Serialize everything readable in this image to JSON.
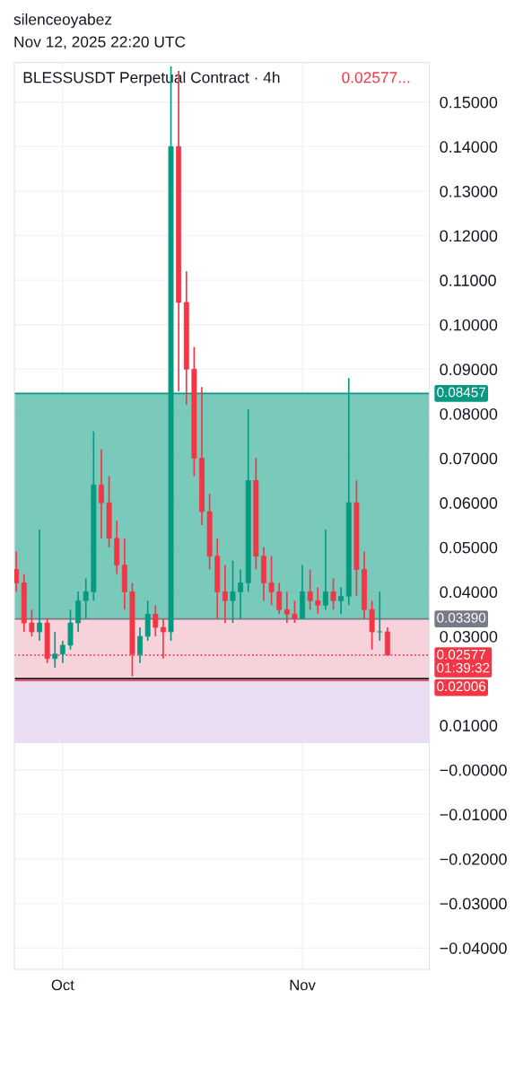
{
  "chart_data": {
    "type": "candlestick",
    "title": "BLESSUSDT Perpetual Contract · 4h",
    "annotations": [
      "silenceoyabez",
      "Nov 12, 2025 22:20 UTC",
      "0.02577..."
    ],
    "x": [
      "2025-09-25",
      "2025-09-26",
      "2025-09-27",
      "2025-09-28",
      "2025-09-29",
      "2025-09-30",
      "2025-10-01",
      "2025-10-02",
      "2025-10-03",
      "2025-10-04",
      "2025-10-05",
      "2025-10-06",
      "2025-10-07",
      "2025-10-08",
      "2025-10-09",
      "2025-10-10",
      "2025-10-11",
      "2025-10-12",
      "2025-10-13",
      "2025-10-14",
      "2025-10-15",
      "2025-10-16",
      "2025-10-17",
      "2025-10-18",
      "2025-10-19",
      "2025-10-20",
      "2025-10-21",
      "2025-10-22",
      "2025-10-23",
      "2025-10-24",
      "2025-10-25",
      "2025-10-26",
      "2025-10-27",
      "2025-10-28",
      "2025-10-29",
      "2025-10-30",
      "2025-10-31",
      "2025-11-01",
      "2025-11-02",
      "2025-11-03",
      "2025-11-04",
      "2025-11-05",
      "2025-11-06",
      "2025-11-07",
      "2025-11-08",
      "2025-11-09",
      "2025-11-10",
      "2025-11-11",
      "2025-11-12"
    ],
    "ohlc": [
      [
        0.045,
        0.049,
        0.04,
        0.042
      ],
      [
        0.042,
        0.044,
        0.031,
        0.033
      ],
      [
        0.033,
        0.036,
        0.03,
        0.031
      ],
      [
        0.031,
        0.054,
        0.029,
        0.033
      ],
      [
        0.033,
        0.034,
        0.024,
        0.025
      ],
      [
        0.025,
        0.031,
        0.023,
        0.026
      ],
      [
        0.026,
        0.029,
        0.024,
        0.028
      ],
      [
        0.028,
        0.036,
        0.027,
        0.033
      ],
      [
        0.033,
        0.04,
        0.031,
        0.038
      ],
      [
        0.038,
        0.043,
        0.034,
        0.04
      ],
      [
        0.04,
        0.076,
        0.038,
        0.064
      ],
      [
        0.064,
        0.072,
        0.052,
        0.06
      ],
      [
        0.06,
        0.066,
        0.05,
        0.052
      ],
      [
        0.052,
        0.056,
        0.044,
        0.046
      ],
      [
        0.046,
        0.052,
        0.036,
        0.04
      ],
      [
        0.04,
        0.042,
        0.021,
        0.026
      ],
      [
        0.026,
        0.032,
        0.024,
        0.03
      ],
      [
        0.03,
        0.038,
        0.029,
        0.035
      ],
      [
        0.035,
        0.037,
        0.03,
        0.032
      ],
      [
        0.032,
        0.034,
        0.025,
        0.031
      ],
      [
        0.031,
        0.158,
        0.029,
        0.14
      ],
      [
        0.14,
        0.157,
        0.085,
        0.105
      ],
      [
        0.105,
        0.112,
        0.082,
        0.09
      ],
      [
        0.09,
        0.095,
        0.066,
        0.07
      ],
      [
        0.07,
        0.086,
        0.055,
        0.058
      ],
      [
        0.058,
        0.062,
        0.045,
        0.048
      ],
      [
        0.048,
        0.052,
        0.034,
        0.04
      ],
      [
        0.04,
        0.046,
        0.033,
        0.038
      ],
      [
        0.038,
        0.047,
        0.033,
        0.04
      ],
      [
        0.04,
        0.045,
        0.034,
        0.042
      ],
      [
        0.042,
        0.081,
        0.04,
        0.065
      ],
      [
        0.065,
        0.07,
        0.045,
        0.048
      ],
      [
        0.048,
        0.05,
        0.038,
        0.042
      ],
      [
        0.042,
        0.048,
        0.037,
        0.04
      ],
      [
        0.04,
        0.042,
        0.035,
        0.036
      ],
      [
        0.036,
        0.04,
        0.033,
        0.035
      ],
      [
        0.035,
        0.038,
        0.033,
        0.034
      ],
      [
        0.034,
        0.046,
        0.034,
        0.04
      ],
      [
        0.04,
        0.045,
        0.036,
        0.038
      ],
      [
        0.038,
        0.041,
        0.035,
        0.037
      ],
      [
        0.037,
        0.054,
        0.036,
        0.04
      ],
      [
        0.04,
        0.043,
        0.036,
        0.038
      ],
      [
        0.038,
        0.041,
        0.035,
        0.039
      ],
      [
        0.039,
        0.088,
        0.037,
        0.06
      ],
      [
        0.06,
        0.065,
        0.039,
        0.045
      ],
      [
        0.045,
        0.049,
        0.034,
        0.036
      ],
      [
        0.036,
        0.038,
        0.027,
        0.031
      ],
      [
        0.031,
        0.04,
        0.029,
        0.031
      ],
      [
        0.031,
        0.032,
        0.0257,
        0.02577
      ]
    ],
    "xlim": [
      "2025-09-24T18:00",
      "2025-11-17T10:00"
    ],
    "xticks": [
      {
        "value": "2025-10-01",
        "label": "Oct"
      },
      {
        "value": "2025-11-01",
        "label": "Nov"
      }
    ],
    "ylim": [
      -0.0448,
      0.1589
    ],
    "yticks": [
      {
        "value": -0.04,
        "label": "−0.04000"
      },
      {
        "value": -0.03,
        "label": "−0.03000"
      },
      {
        "value": -0.02,
        "label": "−0.02000"
      },
      {
        "value": -0.01,
        "label": "−0.01000"
      },
      {
        "value": 0,
        "label": "−0.00000"
      },
      {
        "value": 0.01,
        "label": "0.01000"
      },
      {
        "value": 0.02,
        "label": null
      },
      {
        "value": 0.03,
        "label": "0.03000"
      },
      {
        "value": 0.04,
        "label": "0.04000"
      },
      {
        "value": 0.05,
        "label": "0.05000"
      },
      {
        "value": 0.06,
        "label": "0.06000"
      },
      {
        "value": 0.07,
        "label": "0.07000"
      },
      {
        "value": 0.08,
        "label": "0.08000"
      },
      {
        "value": 0.09,
        "label": "0.09000"
      },
      {
        "value": 0.1,
        "label": "0.10000"
      },
      {
        "value": 0.11,
        "label": "0.11000"
      },
      {
        "value": 0.12,
        "label": "0.12000"
      },
      {
        "value": 0.13,
        "label": "0.13000"
      },
      {
        "value": 0.14,
        "label": "0.14000"
      },
      {
        "value": 0.15,
        "label": "0.15000"
      }
    ],
    "bands": [
      {
        "axis": "y",
        "from": 0.006,
        "to": 0.0339,
        "color": "#e6d3ee"
      },
      {
        "axis": "y",
        "from": 0.0339,
        "to": 0.08457,
        "color": "#4db8a4"
      },
      {
        "axis": "y",
        "from": 0.02006,
        "to": 0.0339,
        "color": "#f9cdd3"
      }
    ],
    "ref_lines": [
      {
        "axis": "y",
        "value": 0.08457,
        "label": "0.08457",
        "color": "#089981",
        "line_style": "solid"
      },
      {
        "axis": "y",
        "value": 0.0339,
        "label": "0.03390",
        "color": "#787b86",
        "line_style": "solid"
      },
      {
        "axis": "y",
        "value": 0.02577,
        "label": "0.02577\n01:39:32",
        "color": "#f23645",
        "line_style": "dotted"
      },
      {
        "axis": "y",
        "value": 0.02006,
        "label": "0.02006",
        "color": "#f23645",
        "line_style": "solid"
      },
      {
        "axis": "y",
        "value": 0.0205,
        "color": "#131722",
        "line_style": "solid"
      }
    ],
    "grid": true
  }
}
